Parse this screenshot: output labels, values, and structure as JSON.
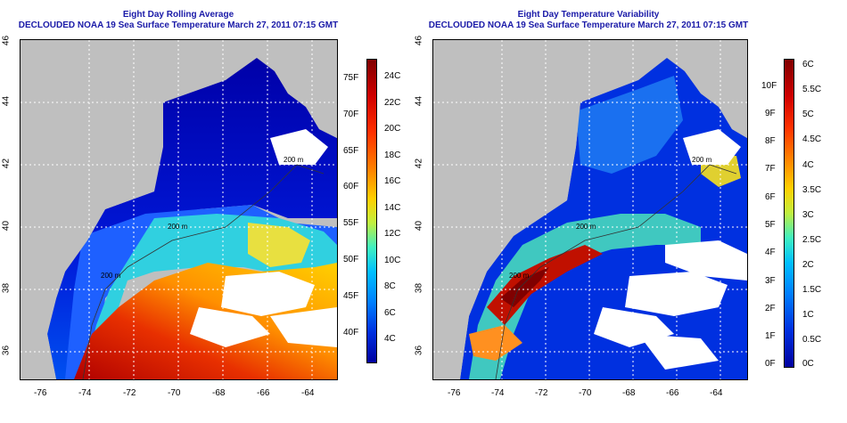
{
  "left_panel": {
    "title_line1": "Eight Day Rolling Average",
    "title_line2": "DECLOUDED NOAA 19 Sea Surface Temperature March 27, 2011 07:15 GMT",
    "x_ticks": [
      "-76",
      "-74",
      "-72",
      "-70",
      "-68",
      "-66",
      "-64"
    ],
    "y_ticks": [
      "36",
      "38",
      "40",
      "42",
      "44",
      "46"
    ],
    "contour_labels": [
      "200 m",
      "200 m",
      "200 m"
    ],
    "colorbar": {
      "celsius": [
        "24C",
        "22C",
        "20C",
        "18C",
        "16C",
        "14C",
        "12C",
        "10C",
        "8C",
        "6C",
        "4C"
      ],
      "fahrenheit": [
        "75F",
        "70F",
        "65F",
        "60F",
        "55F",
        "50F",
        "45F",
        "40F"
      ]
    }
  },
  "right_panel": {
    "title_line1": "Eight Day Temperature Variability",
    "title_line2": "DECLOUDED NOAA 19 Sea Surface Temperature March 27, 2011 07:15 GMT",
    "x_ticks": [
      "-76",
      "-74",
      "-72",
      "-70",
      "-68",
      "-66",
      "-64"
    ],
    "y_ticks": [
      "36",
      "38",
      "40",
      "42",
      "44",
      "46"
    ],
    "contour_labels": [
      "200 m",
      "200 m",
      "200 m"
    ],
    "colorbar": {
      "celsius": [
        "6C",
        "5.5C",
        "5C",
        "4.5C",
        "4C",
        "3.5C",
        "3C",
        "2.5C",
        "2C",
        "1.5C",
        "1C",
        "0.5C",
        "0C"
      ],
      "fahrenheit": [
        "10F",
        "9F",
        "8F",
        "7F",
        "6F",
        "5F",
        "4F",
        "3F",
        "2F",
        "1F",
        "0F"
      ]
    }
  },
  "colors": {
    "land": "#bfbfbf",
    "title": "#1a1aa8",
    "cold": "#00008f",
    "warm": "#b00000"
  }
}
